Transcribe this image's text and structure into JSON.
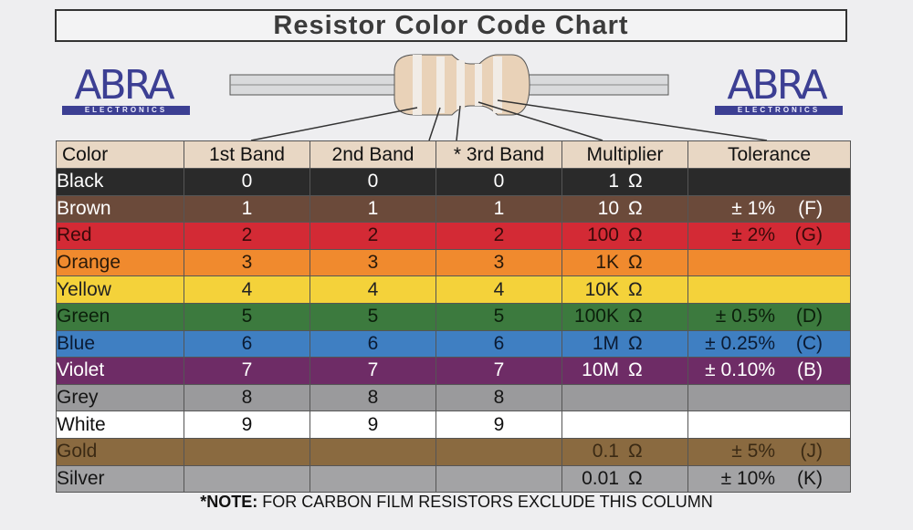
{
  "title": "Resistor Color Code Chart",
  "logo": {
    "brand": "ABRA",
    "sub": "ELECTRONICS"
  },
  "headers": [
    "Color",
    "1st Band",
    "2nd Band",
    "* 3rd Band",
    "Multiplier",
    "Tolerance"
  ],
  "rows": [
    {
      "color": "Black",
      "b1": "0",
      "b2": "0",
      "b3": "0",
      "mult": "1",
      "unit": "Ω",
      "tol": "",
      "code": "",
      "bg": "#2a2a2a",
      "fg": "#ffffff",
      "multbg": "#2a2a2a",
      "multfg": "#ffffff",
      "tolbg": "#2a2a2a",
      "tolfg": "#ffffff"
    },
    {
      "color": "Brown",
      "b1": "1",
      "b2": "1",
      "b3": "1",
      "mult": "10",
      "unit": "Ω",
      "tol": "± 1%",
      "code": "(F)",
      "bg": "#6b4a3a",
      "fg": "#ffffff",
      "multbg": "#6b4a3a",
      "multfg": "#ffffff",
      "tolbg": "#6b4a3a",
      "tolfg": "#ffffff"
    },
    {
      "color": "Red",
      "b1": "2",
      "b2": "2",
      "b3": "2",
      "mult": "100",
      "unit": "Ω",
      "tol": "± 2%",
      "code": "(G)",
      "bg": "#d32a35",
      "fg": "#3a0a0a",
      "multbg": "#d32a35",
      "multfg": "#3a0a0a",
      "tolbg": "#d32a35",
      "tolfg": "#3a0a0a"
    },
    {
      "color": "Orange",
      "b1": "3",
      "b2": "3",
      "b3": "3",
      "mult": "1K",
      "unit": "Ω",
      "tol": "",
      "code": "",
      "bg": "#f08a2e",
      "fg": "#2a1a0a",
      "multbg": "#f08a2e",
      "multfg": "#2a1a0a",
      "tolbg": "#f08a2e",
      "tolfg": "#2a1a0a"
    },
    {
      "color": "Yellow",
      "b1": "4",
      "b2": "4",
      "b3": "4",
      "mult": "10K",
      "unit": "Ω",
      "tol": "",
      "code": "",
      "bg": "#f4d23a",
      "fg": "#222222",
      "multbg": "#f4d23a",
      "multfg": "#222222",
      "tolbg": "#f4d23a",
      "tolfg": "#222222"
    },
    {
      "color": "Green",
      "b1": "5",
      "b2": "5",
      "b3": "5",
      "mult": "100K",
      "unit": "Ω",
      "tol": "± 0.5%",
      "code": "(D)",
      "bg": "#3c7a3e",
      "fg": "#0b1f0b",
      "multbg": "#3c7a3e",
      "multfg": "#0b1f0b",
      "tolbg": "#3c7a3e",
      "tolfg": "#0b1f0b"
    },
    {
      "color": "Blue",
      "b1": "6",
      "b2": "6",
      "b3": "6",
      "mult": "1M",
      "unit": "Ω",
      "tol": "± 0.25%",
      "code": "(C)",
      "bg": "#3f7fc2",
      "fg": "#0b1b33",
      "multbg": "#3f7fc2",
      "multfg": "#0b1b33",
      "tolbg": "#3f7fc2",
      "tolfg": "#0b1b33"
    },
    {
      "color": "Violet",
      "b1": "7",
      "b2": "7",
      "b3": "7",
      "mult": "10M",
      "unit": "Ω",
      "tol": "± 0.10%",
      "code": "(B)",
      "bg": "#6e2c66",
      "fg": "#ffffff",
      "multbg": "#6e2c66",
      "multfg": "#ffffff",
      "tolbg": "#6e2c66",
      "tolfg": "#ffffff"
    },
    {
      "color": "Grey",
      "b1": "8",
      "b2": "8",
      "b3": "8",
      "mult": "",
      "unit": "",
      "tol": "",
      "code": "",
      "bg": "#9a9a9c",
      "fg": "#151515",
      "multbg": "#9a9a9c",
      "multfg": "#151515",
      "tolbg": "#9a9a9c",
      "tolfg": "#151515"
    },
    {
      "color": "White",
      "b1": "9",
      "b2": "9",
      "b3": "9",
      "mult": "",
      "unit": "",
      "tol": "",
      "code": "",
      "bg": "#ffffff",
      "fg": "#111111",
      "multbg": "#ffffff",
      "multfg": "#111111",
      "tolbg": "#ffffff",
      "tolfg": "#111111"
    },
    {
      "color": "Gold",
      "b1": "",
      "b2": "",
      "b3": "",
      "mult": "0.1",
      "unit": "Ω",
      "tol": "± 5%",
      "code": "(J)",
      "bg": "#8a6a40",
      "fg": "#3b2a14",
      "multbg": "#8a6a40",
      "multfg": "#3b2a14",
      "tolbg": "#8a6a40",
      "tolfg": "#3b2a14"
    },
    {
      "color": "Silver",
      "b1": "",
      "b2": "",
      "b3": "",
      "mult": "0.01",
      "unit": "Ω",
      "tol": "± 10%",
      "code": "(K)",
      "bg": "#a3a3a5",
      "fg": "#151515",
      "multbg": "#a3a3a5",
      "multfg": "#151515",
      "tolbg": "#a3a3a5",
      "tolfg": "#151515"
    }
  ],
  "note": {
    "bold": "*NOTE:",
    "text": " FOR CARBON FILM RESISTORS EXCLUDE THIS COLUMN"
  }
}
